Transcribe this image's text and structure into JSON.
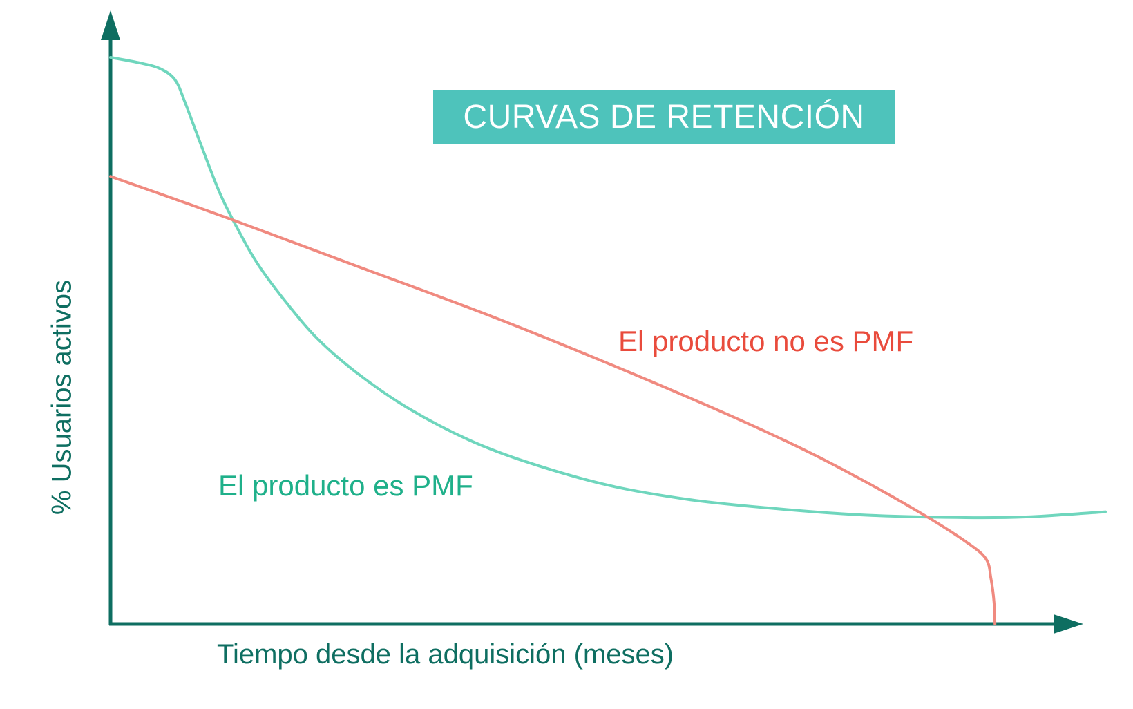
{
  "chart_data": {
    "type": "line",
    "title": "CURVAS DE RETENCIÓN",
    "xlabel": "Tiempo desde la adquisición (meses)",
    "ylabel": "% Usuarios activos",
    "xlim": [
      0,
      100
    ],
    "ylim": [
      0,
      100
    ],
    "grid": false,
    "legend": "none",
    "axis_color": "#0e6e61",
    "series": [
      {
        "name": "El producto es PMF",
        "color": "#6fd6bd",
        "label_color": "#1fb08a",
        "points": [
          [
            0,
            100
          ],
          [
            3,
            99
          ],
          [
            5,
            98
          ],
          [
            6.5,
            96
          ],
          [
            7.5,
            92
          ],
          [
            9,
            85
          ],
          [
            11,
            76
          ],
          [
            13,
            69
          ],
          [
            15,
            63
          ],
          [
            18,
            56
          ],
          [
            21,
            50
          ],
          [
            25,
            44
          ],
          [
            30,
            38
          ],
          [
            36,
            32.5
          ],
          [
            42,
            28.5
          ],
          [
            50,
            24.5
          ],
          [
            58,
            22
          ],
          [
            66,
            20.5
          ],
          [
            75,
            19.3
          ],
          [
            85,
            18.8
          ],
          [
            92,
            18.9
          ],
          [
            100,
            19.8
          ]
        ]
      },
      {
        "name": "El producto no es PMF",
        "color": "#f08a80",
        "label_color": "#e94b3c",
        "points": [
          [
            0,
            79
          ],
          [
            12,
            71.5
          ],
          [
            25,
            63
          ],
          [
            38,
            54.5
          ],
          [
            50,
            46
          ],
          [
            62,
            37
          ],
          [
            70,
            30.5
          ],
          [
            76,
            25
          ],
          [
            82,
            19
          ],
          [
            86,
            14.5
          ],
          [
            88,
            11.5
          ],
          [
            88.5,
            8
          ],
          [
            88.8,
            4
          ],
          [
            88.9,
            0
          ]
        ]
      }
    ]
  }
}
